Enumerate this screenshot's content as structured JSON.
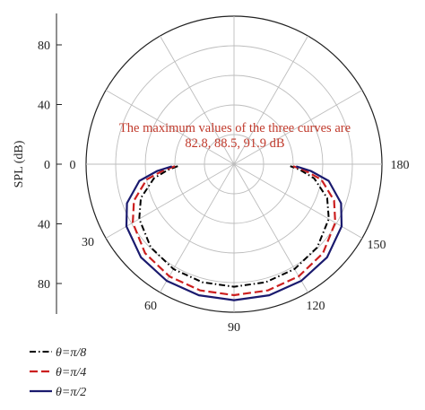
{
  "chart_data": {
    "type": "polar-line",
    "ylabel": "SPL (dB)",
    "radial_ticks": [
      80,
      40,
      0,
      40,
      80
    ],
    "angle_ticks": [
      "0",
      "30",
      "60",
      "90",
      "120",
      "150",
      "180"
    ],
    "annotation": {
      "line1": "The maximum values of the three curves are",
      "line2": "82.8, 88.5, 91.9 dB"
    },
    "grid": true,
    "legend_position": "bottom-left",
    "series": [
      {
        "name": "θ=π/8",
        "color": "#000000",
        "dash": "dashdot",
        "max": 82.8,
        "angles": [
          2,
          5,
          10,
          20,
          30,
          45,
          60,
          75,
          90,
          105,
          120,
          135,
          150,
          160,
          170,
          175,
          178
        ],
        "values": [
          38,
          45,
          55,
          67,
          74,
          79.5,
          81.8,
          82.6,
          82.8,
          82.6,
          81.8,
          79.5,
          74,
          67,
          55,
          45,
          38
        ]
      },
      {
        "name": "θ=π/4",
        "color": "#cc1f1f",
        "dash": "dashed",
        "max": 88.5,
        "angles": [
          2,
          5,
          10,
          20,
          30,
          45,
          60,
          75,
          90,
          105,
          120,
          135,
          150,
          160,
          170,
          175,
          178
        ],
        "values": [
          40,
          48,
          60,
          72,
          79,
          85,
          87.5,
          88.3,
          88.5,
          88.3,
          87.5,
          85,
          79,
          72,
          60,
          48,
          40
        ]
      },
      {
        "name": "θ=π/2",
        "color": "#1a1a6e",
        "dash": "solid",
        "max": 91.9,
        "angles": [
          2,
          5,
          10,
          20,
          30,
          45,
          60,
          75,
          90,
          105,
          120,
          135,
          150,
          160,
          170,
          175,
          178
        ],
        "values": [
          42,
          52,
          65,
          77,
          84,
          89,
          91,
          91.7,
          91.9,
          91.7,
          91,
          89,
          84,
          77,
          65,
          52,
          42
        ]
      }
    ]
  }
}
